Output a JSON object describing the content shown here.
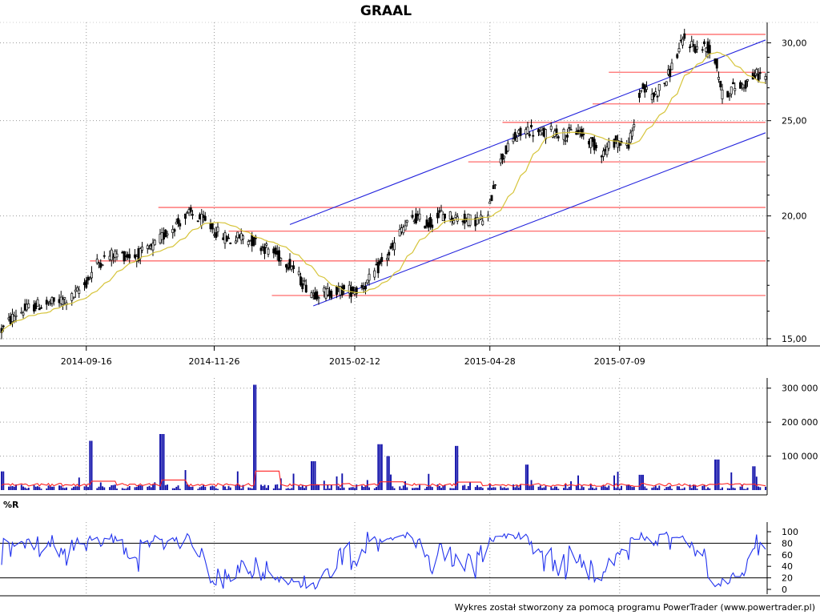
{
  "title": "GRAAL",
  "footer": "Wykres został stworzony za pomocą programu PowerTrader (www.powertrader.pl)",
  "colors": {
    "background": "#ffffff",
    "axis": "#000000",
    "grid": "#9a9a9a",
    "candle": "#000000",
    "moving_average": "#d6c43a",
    "support_resistance": "#ff6b6b",
    "channel": "#2222dd",
    "volume_bars": "#1111aa",
    "volume_average": "#ff2222",
    "williams_r": "#2233ee",
    "reference_lines": "#000000"
  },
  "chart_data": [
    {
      "type": "candlestick",
      "name": "price",
      "title": "GRAAL",
      "y_scale": "log",
      "ylim": [
        15,
        31
      ],
      "y_ticks": [
        "15,00",
        "20,00",
        "25,00",
        "30,00"
      ],
      "x_ticks": [
        "2014-09-16",
        "2014-11-26",
        "2015-02-12",
        "2015-04-28",
        "2015-07-09"
      ],
      "x_range": [
        "2014-07-31",
        "2015-09-28"
      ],
      "grid": true,
      "trend": [
        [
          "2014-07-31",
          15.3
        ],
        [
          "2014-08-08",
          15.9
        ],
        [
          "2014-08-18",
          16.2
        ],
        [
          "2014-08-28",
          16.3
        ],
        [
          "2014-09-08",
          16.5
        ],
        [
          "2014-09-16",
          17.1
        ],
        [
          "2014-09-22",
          17.9
        ],
        [
          "2014-10-01",
          18.3
        ],
        [
          "2014-10-13",
          18.2
        ],
        [
          "2014-10-22",
          18.5
        ],
        [
          "2014-10-30",
          19.2
        ],
        [
          "2014-11-06",
          19.7
        ],
        [
          "2014-11-13",
          20.1
        ],
        [
          "2014-11-21",
          19.7
        ],
        [
          "2014-11-28",
          19.2
        ],
        [
          "2014-12-05",
          18.9
        ],
        [
          "2014-12-12",
          19.1
        ],
        [
          "2014-12-19",
          18.8
        ],
        [
          "2014-12-30",
          18.3
        ],
        [
          "2015-01-08",
          17.8
        ],
        [
          "2015-01-14",
          17.1
        ],
        [
          "2015-01-20",
          16.7
        ],
        [
          "2015-01-26",
          16.7
        ],
        [
          "2015-02-04",
          16.8
        ],
        [
          "2015-02-13",
          16.8
        ],
        [
          "2015-02-19",
          17.1
        ],
        [
          "2015-02-26",
          17.8
        ],
        [
          "2015-03-05",
          18.5
        ],
        [
          "2015-03-10",
          19.4
        ],
        [
          "2015-03-18",
          19.9
        ],
        [
          "2015-03-25",
          19.6
        ],
        [
          "2015-04-01",
          20.1
        ],
        [
          "2015-04-10",
          19.9
        ],
        [
          "2015-04-20",
          19.8
        ],
        [
          "2015-04-27",
          19.9
        ],
        [
          "2015-04-30",
          21.5
        ],
        [
          "2015-05-05",
          23.0
        ],
        [
          "2015-05-12",
          24.0
        ],
        [
          "2015-05-19",
          24.5
        ],
        [
          "2015-05-26",
          24.2
        ],
        [
          "2015-06-02",
          24.4
        ],
        [
          "2015-06-09",
          24.2
        ],
        [
          "2015-06-16",
          24.4
        ],
        [
          "2015-06-23",
          23.8
        ],
        [
          "2015-06-30",
          23.2
        ],
        [
          "2015-07-07",
          23.9
        ],
        [
          "2015-07-13",
          23.5
        ],
        [
          "2015-07-16",
          24.2
        ],
        [
          "2015-07-21",
          27.0
        ],
        [
          "2015-07-28",
          26.5
        ],
        [
          "2015-08-04",
          27.5
        ],
        [
          "2015-08-11",
          29.5
        ],
        [
          "2015-08-14",
          30.3
        ],
        [
          "2015-08-21",
          29.6
        ],
        [
          "2015-08-27",
          29.7
        ],
        [
          "2015-09-01",
          28.5
        ],
        [
          "2015-09-04",
          26.5
        ],
        [
          "2015-09-10",
          27.0
        ],
        [
          "2015-09-16",
          27.2
        ],
        [
          "2015-09-22",
          27.8
        ]
      ],
      "horizontal_levels": [
        {
          "from": "2015-08-14",
          "to": "2015-09-28",
          "y": 30.6
        },
        {
          "from": "2015-07-03",
          "to": "2015-09-28",
          "y": 28.0
        },
        {
          "from": "2015-06-24",
          "to": "2015-09-28",
          "y": 26.0
        },
        {
          "from": "2015-05-05",
          "to": "2015-09-28",
          "y": 24.9
        },
        {
          "from": "2015-04-16",
          "to": "2015-09-28",
          "y": 22.7
        },
        {
          "from": "2014-10-26",
          "to": "2015-09-28",
          "y": 20.4
        },
        {
          "from": "2014-12-04",
          "to": "2015-09-28",
          "y": 19.3
        },
        {
          "from": "2014-09-18",
          "to": "2015-09-28",
          "y": 18.0
        },
        {
          "from": "2014-12-28",
          "to": "2015-09-28",
          "y": 16.6
        }
      ],
      "channel_lines": [
        {
          "from": [
            "2015-01-07",
            19.6
          ],
          "to": [
            "2015-09-28",
            30.2
          ]
        },
        {
          "from": [
            "2015-01-20",
            16.2
          ],
          "to": [
            "2015-09-28",
            24.3
          ]
        }
      ]
    },
    {
      "type": "bar",
      "name": "volume",
      "y_ticks": [
        "100 000",
        "200 000",
        "300 000"
      ],
      "ylim": [
        0,
        330000
      ],
      "x_range": [
        "2014-07-31",
        "2015-09-28"
      ],
      "grid": true,
      "spikes": [
        [
          "2014-07-31",
          55000
        ],
        [
          "2014-09-19",
          145000
        ],
        [
          "2014-10-28",
          165000
        ],
        [
          "2014-12-19",
          310000
        ],
        [
          "2015-01-20",
          85000
        ],
        [
          "2015-02-26",
          135000
        ],
        [
          "2015-03-02",
          100000
        ],
        [
          "2015-04-10",
          130000
        ],
        [
          "2015-05-18",
          75000
        ],
        [
          "2015-07-21",
          45000
        ],
        [
          "2015-09-01",
          90000
        ],
        [
          "2015-09-22",
          70000
        ]
      ],
      "average_level": 18000
    },
    {
      "type": "line",
      "name": "williams_r",
      "label": "%R",
      "ylim": [
        0,
        100
      ],
      "y_ticks": [
        "0",
        "20",
        "40",
        "60",
        "80",
        "100"
      ],
      "reference_lines": [
        20,
        80
      ],
      "x_range": [
        "2014-07-31",
        "2015-09-28"
      ],
      "grid": true
    }
  ]
}
